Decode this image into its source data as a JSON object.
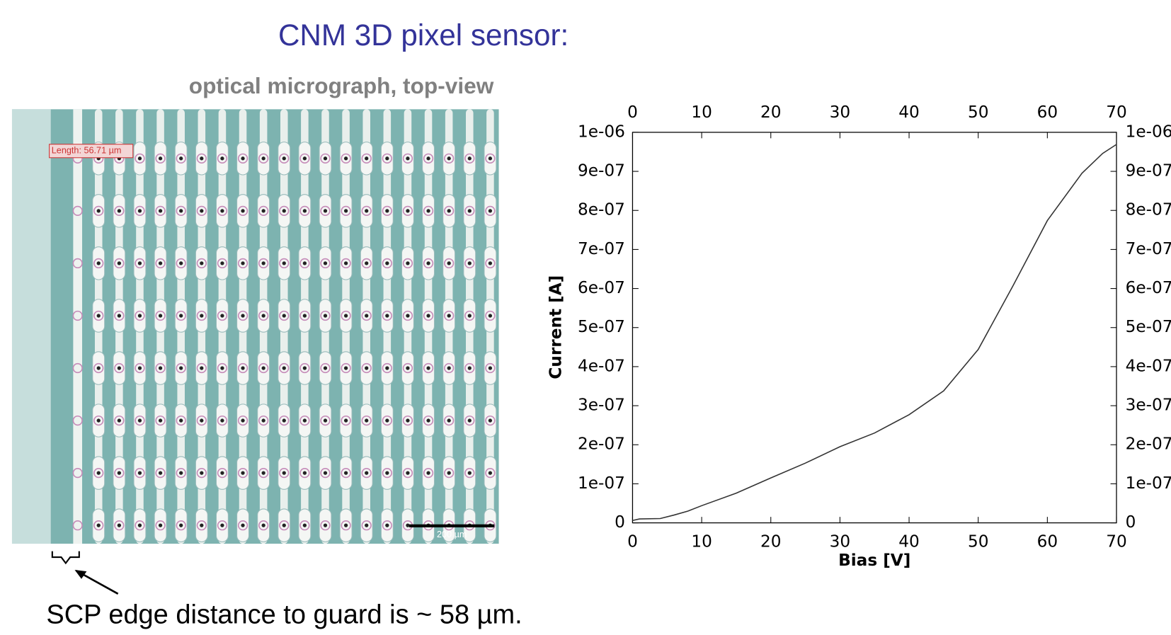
{
  "slide": {
    "title": "CNM 3D pixel sensor:",
    "image_caption": "optical micrograph, top-view",
    "measurement_label": "Length: 56.71 µm",
    "scale_bar_label": "200 µm",
    "note": "SCP edge distance to guard is ~ 58 µm."
  },
  "chart_data": {
    "type": "line",
    "xlabel": "Bias [V]",
    "ylabel": "Current [A]",
    "x": [
      0,
      1,
      4,
      6,
      8,
      10,
      15,
      20,
      25,
      30,
      35,
      40,
      45,
      50,
      55,
      60,
      65,
      68,
      70
    ],
    "series": [
      {
        "color": "#333333",
        "values": [
          6e-09,
          1e-08,
          1.1e-08,
          2e-08,
          3e-08,
          4.4e-08,
          7.6e-08,
          1.15e-07,
          1.53e-07,
          1.95e-07,
          2.3e-07,
          2.77e-07,
          3.38e-07,
          4.44e-07,
          6.06e-07,
          7.74e-07,
          8.95e-07,
          9.46e-07,
          9.69e-07
        ]
      }
    ],
    "xlim": [
      0,
      70
    ],
    "xticks": [
      0,
      10,
      20,
      30,
      40,
      50,
      60,
      70
    ],
    "ylim": [
      0,
      1e-06
    ],
    "yticks": [
      0,
      {
        "value": 1e-07,
        "label": "1e-07"
      },
      {
        "value": 2e-07,
        "label": "2e-07"
      },
      {
        "value": 3e-07,
        "label": "3e-07"
      },
      {
        "value": 4e-07,
        "label": "4e-07"
      },
      {
        "value": 5e-07,
        "label": "5e-07"
      },
      {
        "value": 6e-07,
        "label": "6e-07"
      },
      {
        "value": 7e-07,
        "label": "7e-07"
      },
      {
        "value": 8e-07,
        "label": "8e-07"
      },
      {
        "value": 9e-07,
        "label": "9e-07"
      },
      {
        "value": 1e-06,
        "label": "1e-06"
      }
    ]
  }
}
